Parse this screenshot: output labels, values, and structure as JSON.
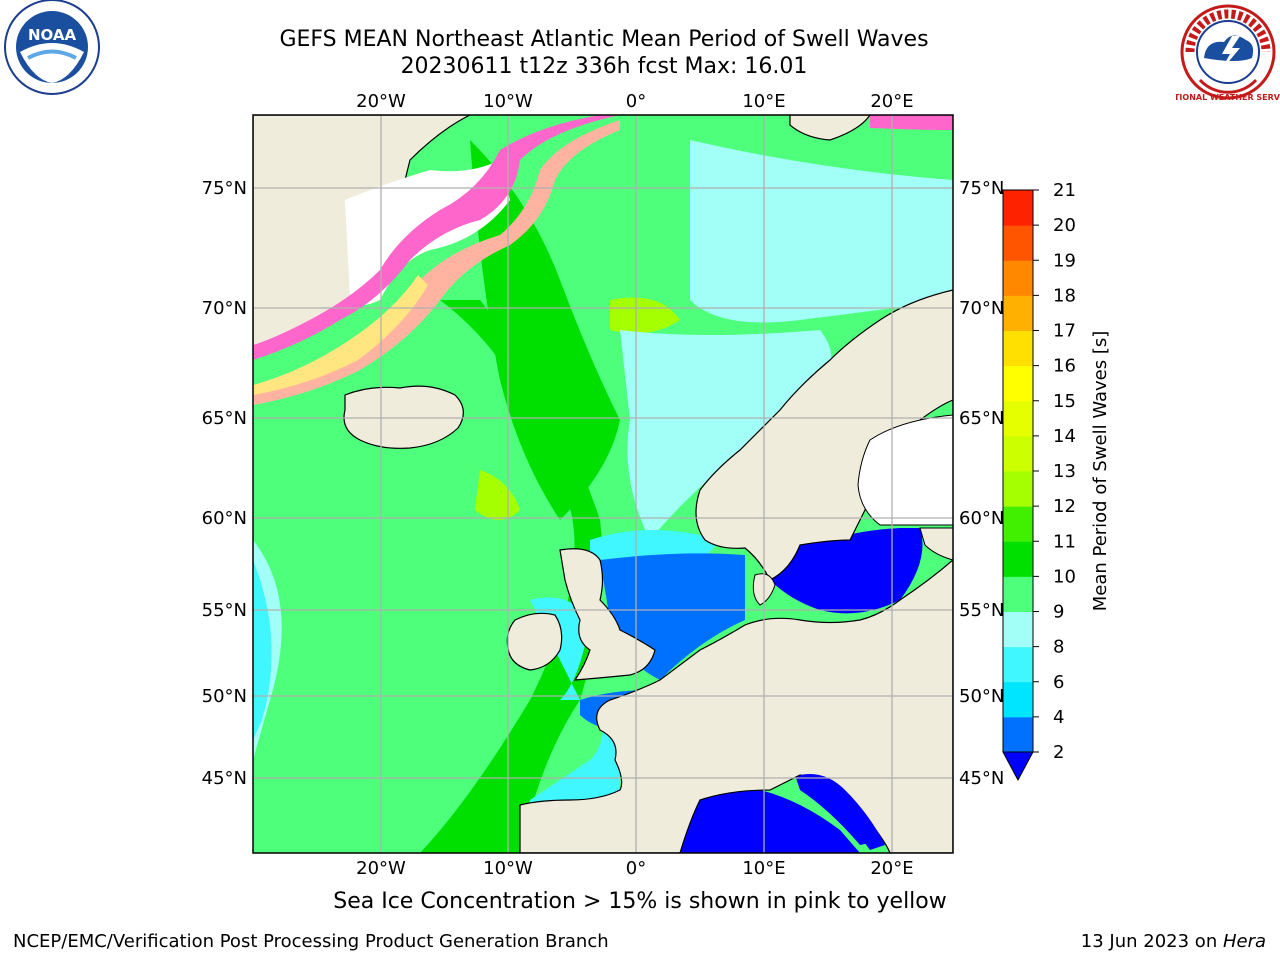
{
  "header": {
    "title_line1": "GEFS MEAN Northeast Atlantic Mean Period of Swell Waves",
    "title_line2": "20230611 t12z 336h fcst   Max: 16.01"
  },
  "logos": {
    "left_text": "NOAA",
    "right_text": "NATIONAL WEATHER SERVICE"
  },
  "map": {
    "lon_labels": [
      "20°W",
      "10°W",
      "0°",
      "10°E",
      "20°E"
    ],
    "lon_values": [
      -20,
      -10,
      0,
      10,
      20
    ],
    "lat_labels": [
      "75°N",
      "70°N",
      "65°N",
      "60°N",
      "55°N",
      "50°N",
      "45°N"
    ],
    "lat_values": [
      75,
      70,
      65,
      60,
      55,
      50,
      45
    ],
    "colors": {
      "land": "#efecdc",
      "ice_white": "#ffffff",
      "coast": "#000000",
      "grid": "#b0b0b0"
    }
  },
  "colorbar": {
    "label": "Mean Period of Swell Waves [s]",
    "tick_labels": [
      "2",
      "4",
      "6",
      "8",
      "9",
      "10",
      "11",
      "12",
      "13",
      "14",
      "15",
      "16",
      "17",
      "18",
      "19",
      "20",
      "21"
    ],
    "level_colors": [
      "#0070ff",
      "#00e5ff",
      "#40f6ff",
      "#a2fff8",
      "#4dff7a",
      "#00e000",
      "#40f000",
      "#a6ff00",
      "#ccff00",
      "#e5ff00",
      "#ffff00",
      "#ffe000",
      "#ffb000",
      "#ff8800",
      "#ff5500",
      "#ff2200"
    ],
    "extend_color": "#0000ff"
  },
  "caption": "Sea Ice Concentration > 15% is shown in pink to yellow",
  "footer": {
    "left": "NCEP/EMC/Verification Post Processing Product Generation Branch",
    "right_prefix": "13 Jun 2023 on ",
    "right_host": "Hera"
  }
}
